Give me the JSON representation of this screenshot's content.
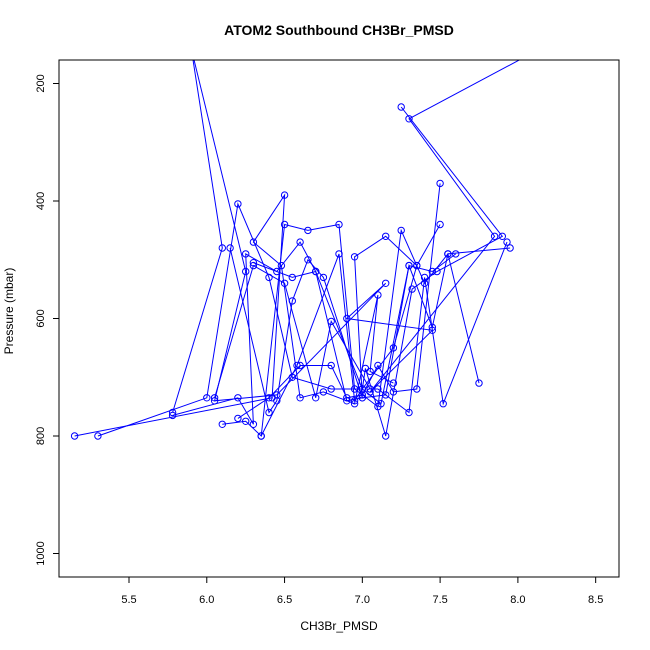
{
  "chart_data": {
    "type": "line",
    "title": "ATOM2 Southbound CH3Br_PMSD",
    "xlabel": "CH3Br_PMSD",
    "ylabel": "Pressure (mbar)",
    "xlim": [
      5.05,
      8.65
    ],
    "ylim": [
      1040,
      160
    ],
    "y_reversed": true,
    "x_ticks": [
      5.5,
      6.0,
      6.5,
      7.0,
      7.5,
      8.0,
      8.5
    ],
    "x_tick_labels": [
      "5.5",
      "6.0",
      "6.5",
      "7.0",
      "7.5",
      "8.0",
      "8.5"
    ],
    "y_ticks": [
      200,
      400,
      600,
      800,
      1000
    ],
    "y_tick_labels": [
      "200",
      "400",
      "600",
      "800",
      "1000"
    ],
    "grid": false,
    "legend": "none",
    "series_color": "#0000ff",
    "marker": "open-circle",
    "series": [
      {
        "x": [
          5.78,
          6.1,
          5.9,
          6.25,
          6.05,
          6.45,
          7.15,
          6.9,
          7.45,
          7.05,
          7.85,
          7.3,
          8.15
        ],
        "y": [
          760,
          480,
          140,
          520,
          740,
          730,
          540,
          600,
          620,
          725,
          460,
          260,
          140
        ]
      },
      {
        "x": [
          5.3,
          6.0,
          6.2,
          6.4,
          6.55,
          6.8,
          7.0,
          7.2,
          7.35
        ],
        "y": [
          800,
          735,
          405,
          530,
          700,
          720,
          720,
          650,
          510
        ]
      },
      {
        "x": [
          5.15,
          6.42,
          6.5,
          6.3,
          6.48,
          6.6,
          6.75,
          6.95,
          7.1,
          7.05,
          7.2
        ],
        "y": [
          800,
          735,
          390,
          470,
          510,
          735,
          725,
          745,
          560,
          690,
          710
        ]
      },
      {
        "x": [
          5.78,
          6.2,
          6.3,
          6.25,
          6.45,
          6.6,
          6.7,
          6.9,
          7.0,
          6.95,
          7.15,
          7.35,
          7.5
        ],
        "y": [
          765,
          735,
          780,
          490,
          520,
          470,
          520,
          740,
          735,
          495,
          460,
          510,
          440
        ]
      },
      {
        "x": [
          6.1,
          6.25,
          6.35,
          6.5,
          6.65,
          6.85,
          6.95,
          7.1,
          7.25,
          7.4,
          7.55,
          7.75
        ],
        "y": [
          780,
          775,
          800,
          440,
          450,
          440,
          720,
          750,
          450,
          540,
          490,
          710
        ]
      },
      {
        "x": [
          6.15,
          6.4,
          6.45,
          6.55,
          6.65,
          6.75,
          7.0,
          7.15,
          7.3,
          7.45,
          7.6
        ],
        "y": [
          480,
          760,
          740,
          570,
          500,
          530,
          735,
          730,
          510,
          520,
          490
        ]
      },
      {
        "x": [
          6.05,
          6.3,
          6.5,
          6.7,
          6.8,
          7.05,
          7.1,
          7.3,
          7.4,
          7.52,
          7.93
        ],
        "y": [
          735,
          510,
          540,
          735,
          605,
          720,
          720,
          760,
          530,
          745,
          470
        ]
      },
      {
        "x": [
          6.2,
          6.4,
          6.6,
          6.8,
          6.9,
          7.0,
          7.1,
          7.2,
          7.35,
          7.5
        ],
        "y": [
          770,
          735,
          680,
          680,
          735,
          730,
          680,
          725,
          720,
          370
        ]
      },
      {
        "x": [
          6.35,
          6.58,
          6.85,
          6.95,
          7.0,
          7.12,
          7.3,
          7.45,
          7.55,
          7.95
        ],
        "y": [
          800,
          680,
          490,
          740,
          720,
          745,
          510,
          615,
          490,
          480
        ]
      },
      {
        "x": [
          6.3,
          6.55,
          6.7,
          7.0,
          7.02,
          7.15,
          7.32,
          7.48,
          7.9,
          7.25
        ],
        "y": [
          505,
          530,
          520,
          720,
          685,
          800,
          550,
          520,
          460,
          240
        ]
      }
    ]
  }
}
